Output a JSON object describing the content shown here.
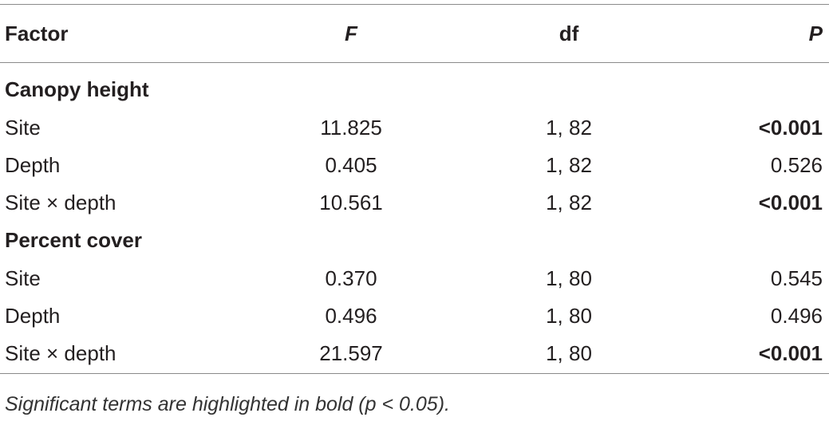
{
  "table": {
    "header": [
      "Factor",
      "F",
      "df",
      "P"
    ],
    "sections": [
      {
        "title": "Canopy height",
        "rows": [
          [
            "Site",
            "11.825",
            "1, 82",
            "<0.001"
          ],
          [
            "Depth",
            "0.405",
            "1, 82",
            "0.526"
          ],
          [
            "Site × depth",
            "10.561",
            "1, 82",
            "<0.001"
          ]
        ],
        "significant": [
          true,
          false,
          true
        ]
      },
      {
        "title": "Percent cover",
        "rows": [
          [
            "Site",
            "0.370",
            "1, 80",
            "0.545"
          ],
          [
            "Depth",
            "0.496",
            "1, 80",
            "0.496"
          ],
          [
            "Site × depth",
            "21.597",
            "1, 80",
            "<0.001"
          ]
        ],
        "significant": [
          false,
          false,
          true
        ]
      }
    ],
    "footnote": "Significant terms are highlighted in bold (p < 0.05)."
  }
}
